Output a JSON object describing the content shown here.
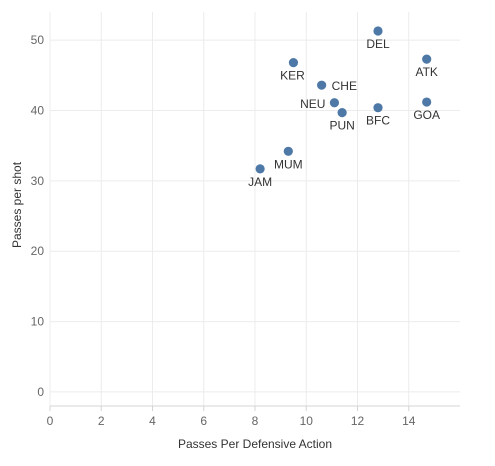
{
  "chart_data": {
    "type": "scatter",
    "title": "",
    "xlabel": "Passes Per Defensive Action",
    "ylabel": "Passes per shot",
    "xlim": [
      0,
      16
    ],
    "ylim": [
      -2,
      54
    ],
    "x_ticks": [
      0,
      2,
      4,
      6,
      8,
      10,
      12,
      14
    ],
    "y_ticks": [
      0,
      10,
      20,
      30,
      40,
      50
    ],
    "grid": true,
    "marker_color": "#4e79a7",
    "points": [
      {
        "label": "DEL",
        "x": 12.8,
        "y": 51.3,
        "label_pos": "below"
      },
      {
        "label": "ATK",
        "x": 14.7,
        "y": 47.3,
        "label_pos": "below"
      },
      {
        "label": "KER",
        "x": 9.5,
        "y": 46.8,
        "label_pos": "below-left"
      },
      {
        "label": "CHE",
        "x": 10.6,
        "y": 43.6,
        "label_pos": "right"
      },
      {
        "label": "NEU",
        "x": 11.1,
        "y": 41.1,
        "label_pos": "left"
      },
      {
        "label": "GOA",
        "x": 14.7,
        "y": 41.2,
        "label_pos": "below"
      },
      {
        "label": "BFC",
        "x": 12.8,
        "y": 40.4,
        "label_pos": "below"
      },
      {
        "label": "PUN",
        "x": 11.4,
        "y": 39.7,
        "label_pos": "below"
      },
      {
        "label": "MUM",
        "x": 9.3,
        "y": 34.2,
        "label_pos": "below"
      },
      {
        "label": "JAM",
        "x": 8.2,
        "y": 31.7,
        "label_pos": "below"
      }
    ]
  }
}
